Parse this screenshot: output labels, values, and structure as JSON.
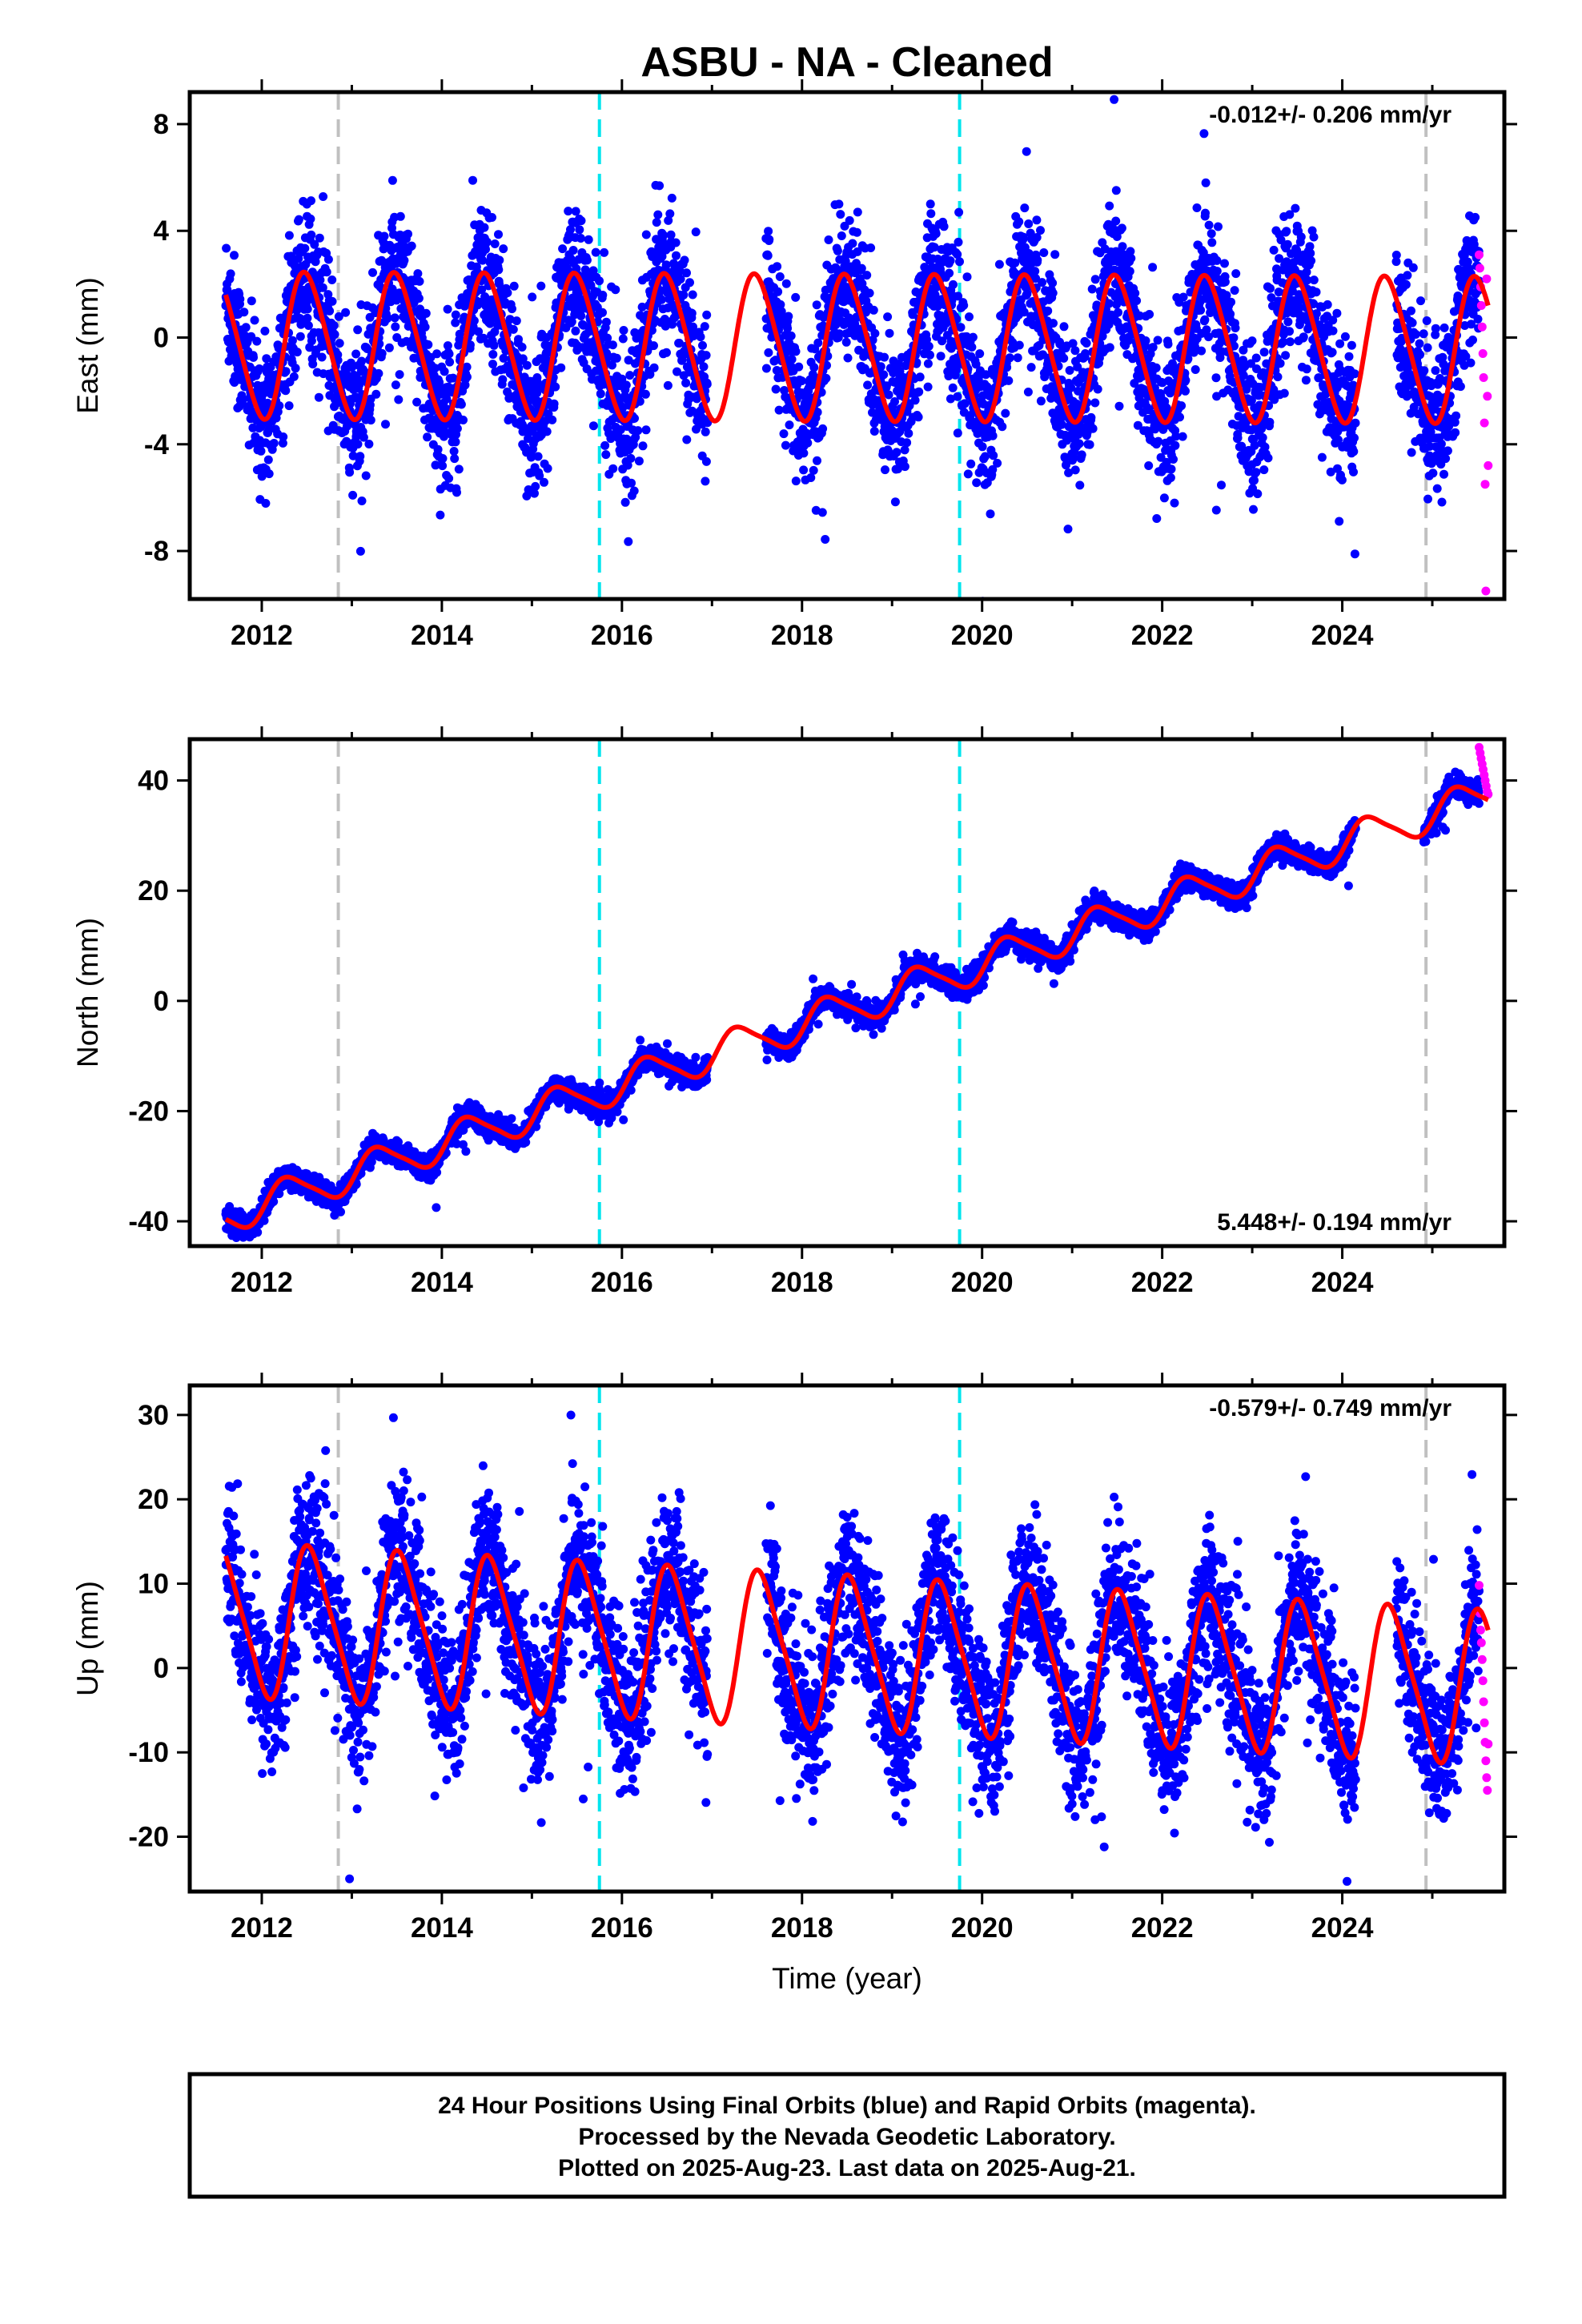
{
  "chart_data": {
    "title": "ASBU  - NA - Cleaned",
    "type": "scatter",
    "xlabel": "Time (year)",
    "xlim": [
      2011.2,
      2025.8
    ],
    "x_ticks": [
      2012,
      2014,
      2016,
      2018,
      2020,
      2022,
      2024
    ],
    "x_tick_labels": [
      "2012",
      "2014",
      "2016",
      "2018",
      "2020",
      "2022",
      "2024"
    ],
    "events": [
      {
        "x": 2012.85,
        "color": "#c0c0c0"
      },
      {
        "x": 2015.75,
        "color": "#00e5ee"
      },
      {
        "x": 2019.75,
        "color": "#00e5ee"
      },
      {
        "x": 2024.93,
        "color": "#c0c0c0"
      }
    ],
    "legend": {
      "final_orbits_color": "#0000ff",
      "rapid_orbits_color": "#ff00ff",
      "model_color": "#ff0000"
    },
    "panels": [
      {
        "name": "east",
        "ylabel": "East (mm)",
        "ylim": [
          -9.8,
          9.2
        ],
        "y_ticks": [
          8,
          4,
          0,
          -4,
          -8
        ],
        "y_tick_labels": [
          "8",
          "4",
          "0",
          "-4",
          "-8"
        ],
        "rate_text": "-0.012+/- 0.206 mm/yr",
        "rate_position": "top-right",
        "model": {
          "slope": -0.012,
          "intercept": -0.3,
          "annual_amp": 2.7,
          "annual_phase": 0.25,
          "semi_amp": 0.3,
          "amp_growth": 0.0
        },
        "data_segments": [
          [
            2011.6,
            2016.95
          ],
          [
            2017.6,
            2024.15
          ],
          [
            2024.6,
            2025.52
          ]
        ],
        "noise": 1.3,
        "rapid": {
          "start": 2025.52,
          "end": 2025.62,
          "values": [
            3.1,
            2.6,
            1.9,
            1.2,
            0.4,
            -0.6,
            -1.5,
            -3.2,
            -5.5,
            -9.5,
            2.2,
            -2.2,
            -4.8
          ]
        }
      },
      {
        "name": "north",
        "ylabel": "North (mm)",
        "ylim": [
          -44.5,
          47.5
        ],
        "y_ticks": [
          40,
          20,
          0,
          -20,
          -40
        ],
        "y_tick_labels": [
          "40",
          "20",
          "0",
          "-20",
          "-40"
        ],
        "rate_text": "5.448+/- 0.194 mm/yr",
        "rate_position": "bottom-right",
        "model": {
          "slope": 5.448,
          "intercept": -39.0,
          "annual_amp": 3.2,
          "annual_phase": 0.05,
          "semi_amp": 0.6,
          "amp_growth": 0.0
        },
        "data_segments": [
          [
            2011.6,
            2016.95
          ],
          [
            2017.6,
            2024.15
          ],
          [
            2024.9,
            2025.52
          ]
        ],
        "noise": 1.1,
        "rapid": {
          "start": 2025.52,
          "end": 2025.62,
          "values": [
            46.0,
            45.0,
            44.0,
            43.0,
            42.0,
            41.0,
            40.0,
            39.0,
            38.0,
            37.5
          ]
        }
      },
      {
        "name": "up",
        "ylabel": "Up (mm)",
        "ylim": [
          -26.5,
          33.5
        ],
        "y_ticks": [
          30,
          20,
          10,
          0,
          -10,
          -20
        ],
        "y_tick_labels": [
          "30",
          "20",
          "10",
          "0",
          "-10",
          "-20"
        ],
        "rate_text": "-0.579+/- 0.749 mm/yr",
        "rate_position": "top-right",
        "model": {
          "slope": -0.579,
          "intercept": 5.8,
          "annual_amp": 8.8,
          "annual_phase": 0.3,
          "semi_amp": 1.5,
          "amp_growth": 0.0
        },
        "data_segments": [
          [
            2011.6,
            2016.95
          ],
          [
            2017.6,
            2024.15
          ],
          [
            2024.6,
            2025.52
          ]
        ],
        "noise": 4.5,
        "rapid": {
          "start": 2025.52,
          "end": 2025.62,
          "values": [
            9.8,
            6.5,
            4.5,
            3.0,
            1.0,
            -1.5,
            -4.0,
            -6.5,
            -8.8,
            -11.0,
            -13.0,
            -14.5,
            -9.0
          ]
        }
      }
    ]
  },
  "footer": {
    "line1": "24 Hour Positions Using Final Orbits (blue) and Rapid Orbits (magenta).",
    "line2": "Processed by the Nevada Geodetic Laboratory.",
    "line3": "Plotted on 2025-Aug-23. Last data on 2025-Aug-21."
  }
}
